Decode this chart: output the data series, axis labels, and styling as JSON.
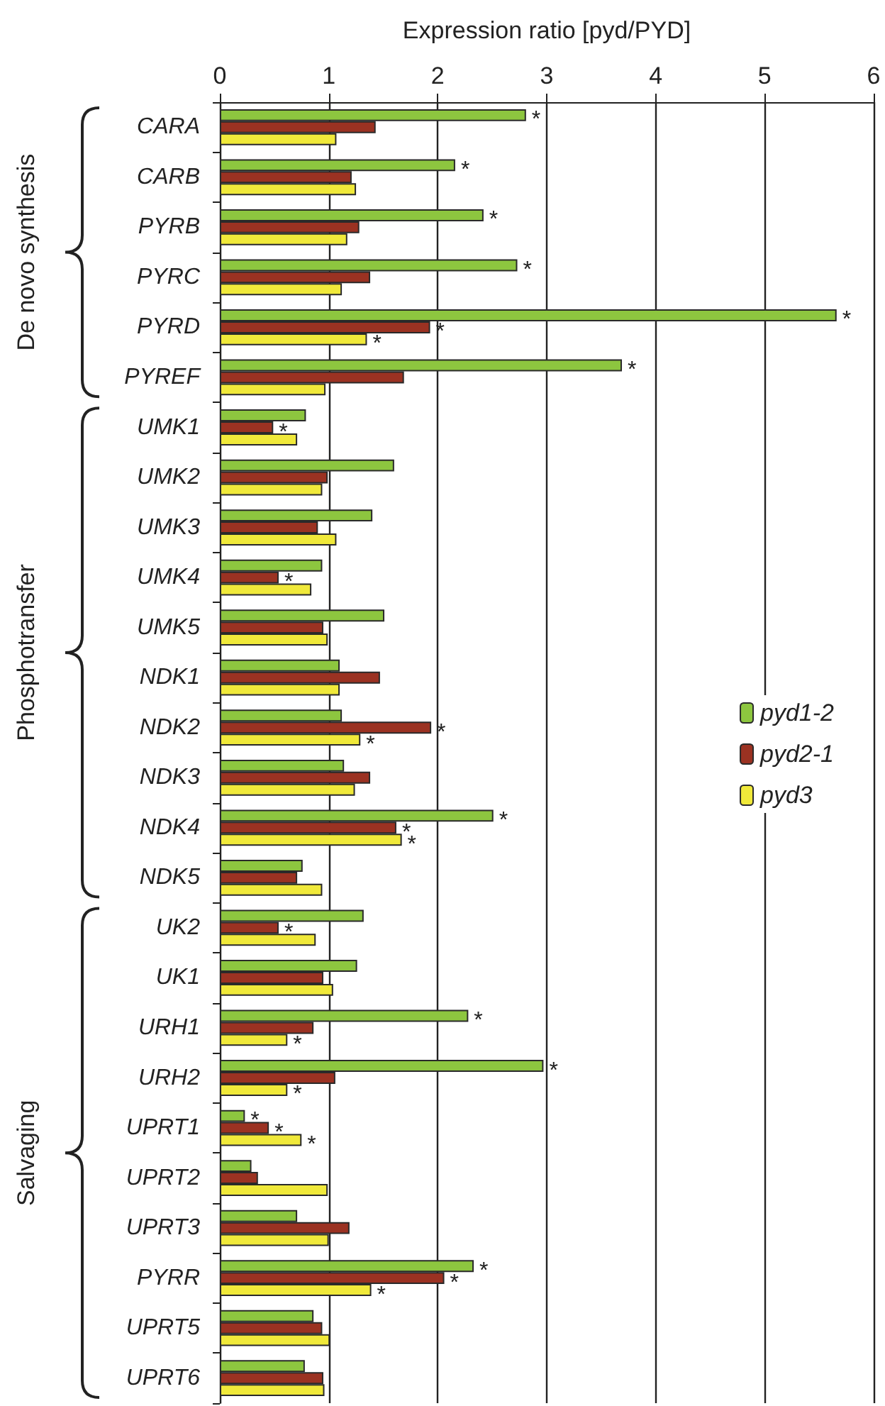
{
  "chart_data": {
    "type": "bar",
    "orientation": "horizontal",
    "xlabel": "Expression ratio [pyd/PYD]",
    "categories": [
      "CARA",
      "CARB",
      "PYRB",
      "PYRC",
      "PYRD",
      "PYREF",
      "UMK1",
      "UMK2",
      "UMK3",
      "UMK4",
      "UMK5",
      "NDK1",
      "NDK2",
      "NDK3",
      "NDK4",
      "NDK5",
      "UK2",
      "UK1",
      "URH1",
      "URH2",
      "UPRT1",
      "UPRT2",
      "UPRT3",
      "PYRR",
      "UPRT5",
      "UPRT6"
    ],
    "series": [
      {
        "name": "pyd1-2",
        "color": "#8dc63f",
        "values": [
          2.81,
          2.16,
          2.42,
          2.73,
          5.66,
          3.69,
          0.79,
          1.6,
          1.4,
          0.94,
          1.51,
          1.1,
          1.12,
          1.14,
          2.51,
          0.76,
          1.32,
          1.26,
          2.28,
          2.97,
          0.23,
          0.29,
          0.71,
          2.33,
          0.86,
          0.78
        ]
      },
      {
        "name": "pyd2-1",
        "color": "#9b3222",
        "values": [
          1.43,
          1.21,
          1.28,
          1.38,
          1.93,
          1.69,
          0.49,
          0.99,
          0.9,
          0.54,
          0.95,
          1.47,
          1.94,
          1.38,
          1.62,
          0.71,
          0.54,
          0.95,
          0.86,
          1.06,
          0.45,
          0.35,
          1.19,
          2.06,
          0.94,
          0.95
        ]
      },
      {
        "name": "pyd3",
        "color": "#f0e93a",
        "values": [
          1.07,
          1.25,
          1.17,
          1.12,
          1.35,
          0.97,
          0.71,
          0.94,
          1.07,
          0.84,
          0.99,
          1.1,
          1.29,
          1.24,
          1.67,
          0.94,
          0.88,
          1.04,
          0.62,
          0.62,
          0.75,
          0.99,
          1.0,
          1.39,
          1.01,
          0.96
        ]
      }
    ],
    "xlim": [
      0,
      6
    ],
    "xticks": [
      0,
      1,
      2,
      3,
      4,
      5,
      6
    ],
    "grid": "x",
    "legend": "right",
    "annotations": [
      "De novo synthesis",
      "Phosphotransfer",
      "Salvaging",
      {
        "text": "*",
        "x": 2.81,
        "y": "CARA"
      },
      {
        "text": "*",
        "x": 2.16,
        "y": "CARB"
      },
      {
        "text": "*",
        "x": 2.42,
        "y": "PYRB"
      },
      {
        "text": "*",
        "x": 2.73,
        "y": "PYRC"
      },
      {
        "text": "*",
        "x": 5.66,
        "y": "PYRD"
      },
      {
        "text": "*",
        "x": 1.93,
        "y": "PYRD"
      },
      {
        "text": "*",
        "x": 1.35,
        "y": "PYRD"
      },
      {
        "text": "*",
        "x": 3.69,
        "y": "PYREF"
      },
      {
        "text": "*",
        "x": 0.49,
        "y": "UMK1"
      },
      {
        "text": "*",
        "x": 0.54,
        "y": "UMK4"
      },
      {
        "text": "*",
        "x": 1.94,
        "y": "NDK2"
      },
      {
        "text": "*",
        "x": 1.29,
        "y": "NDK2"
      },
      {
        "text": "*",
        "x": 2.51,
        "y": "NDK4"
      },
      {
        "text": "*",
        "x": 1.62,
        "y": "NDK4"
      },
      {
        "text": "*",
        "x": 1.67,
        "y": "NDK4"
      },
      {
        "text": "*",
        "x": 0.54,
        "y": "UK2"
      },
      {
        "text": "*",
        "x": 2.28,
        "y": "URH1"
      },
      {
        "text": "*",
        "x": 0.62,
        "y": "URH1"
      },
      {
        "text": "*",
        "x": 2.97,
        "y": "URH2"
      },
      {
        "text": "*",
        "x": 0.62,
        "y": "URH2"
      },
      {
        "text": "*",
        "x": 0.23,
        "y": "UPRT1"
      },
      {
        "text": "*",
        "x": 0.45,
        "y": "UPRT1"
      },
      {
        "text": "*",
        "x": 0.75,
        "y": "UPRT1"
      },
      {
        "text": "*",
        "x": 2.33,
        "y": "PYRR"
      },
      {
        "text": "*",
        "x": 2.06,
        "y": "PYRR"
      },
      {
        "text": "*",
        "x": 1.39,
        "y": "PYRR"
      }
    ]
  }
}
